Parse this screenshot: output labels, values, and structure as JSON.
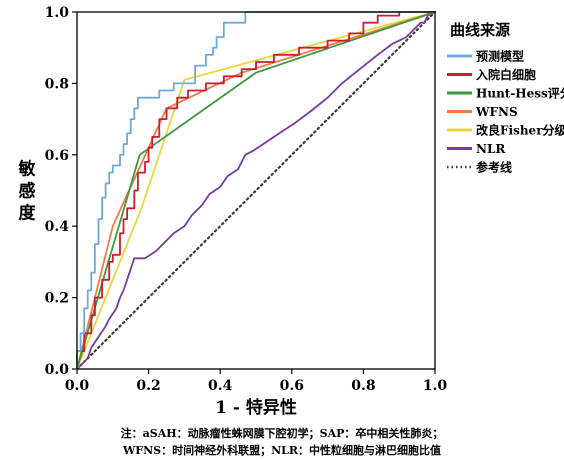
{
  "chart_data": {
    "type": "line",
    "title": "",
    "xlabel": "1 - 特异性",
    "ylabel": "敏感度",
    "xlim": [
      0,
      1
    ],
    "ylim": [
      0,
      1
    ],
    "x_ticks": [
      "0.0",
      "0.2",
      "0.4",
      "0.6",
      "0.8",
      "1.0"
    ],
    "y_ticks": [
      "0.0",
      "0.2",
      "0.4",
      "0.6",
      "0.8",
      "1.0"
    ],
    "grid": false,
    "legend": {
      "title": "曲线来源",
      "placement": "right"
    },
    "series": [
      {
        "name": "预测模型",
        "color": "#6fa8dc",
        "style": "step",
        "points": [
          [
            0,
            0
          ],
          [
            0,
            0.05
          ],
          [
            0.01,
            0.05
          ],
          [
            0.01,
            0.1
          ],
          [
            0.02,
            0.1
          ],
          [
            0.02,
            0.17
          ],
          [
            0.03,
            0.17
          ],
          [
            0.03,
            0.22
          ],
          [
            0.04,
            0.22
          ],
          [
            0.04,
            0.27
          ],
          [
            0.05,
            0.27
          ],
          [
            0.05,
            0.35
          ],
          [
            0.06,
            0.35
          ],
          [
            0.06,
            0.42
          ],
          [
            0.07,
            0.42
          ],
          [
            0.07,
            0.48
          ],
          [
            0.08,
            0.48
          ],
          [
            0.08,
            0.52
          ],
          [
            0.09,
            0.52
          ],
          [
            0.09,
            0.55
          ],
          [
            0.1,
            0.55
          ],
          [
            0.1,
            0.57
          ],
          [
            0.12,
            0.57
          ],
          [
            0.12,
            0.6
          ],
          [
            0.13,
            0.6
          ],
          [
            0.13,
            0.63
          ],
          [
            0.14,
            0.63
          ],
          [
            0.14,
            0.66
          ],
          [
            0.15,
            0.66
          ],
          [
            0.15,
            0.7
          ],
          [
            0.16,
            0.7
          ],
          [
            0.16,
            0.73
          ],
          [
            0.17,
            0.73
          ],
          [
            0.17,
            0.76
          ],
          [
            0.23,
            0.76
          ],
          [
            0.23,
            0.78
          ],
          [
            0.27,
            0.78
          ],
          [
            0.27,
            0.8
          ],
          [
            0.33,
            0.8
          ],
          [
            0.33,
            0.85
          ],
          [
            0.36,
            0.85
          ],
          [
            0.36,
            0.88
          ],
          [
            0.38,
            0.88
          ],
          [
            0.38,
            0.9
          ],
          [
            0.39,
            0.9
          ],
          [
            0.39,
            0.93
          ],
          [
            0.41,
            0.93
          ],
          [
            0.41,
            0.97
          ],
          [
            0.47,
            0.97
          ],
          [
            0.47,
            1.0
          ],
          [
            1.0,
            1.0
          ]
        ]
      },
      {
        "name": "入院白细胞",
        "color": "#d01c2c",
        "style": "step",
        "points": [
          [
            0,
            0
          ],
          [
            0,
            0.05
          ],
          [
            0.02,
            0.05
          ],
          [
            0.02,
            0.1
          ],
          [
            0.04,
            0.1
          ],
          [
            0.04,
            0.15
          ],
          [
            0.05,
            0.15
          ],
          [
            0.05,
            0.2
          ],
          [
            0.07,
            0.2
          ],
          [
            0.07,
            0.25
          ],
          [
            0.09,
            0.25
          ],
          [
            0.09,
            0.3
          ],
          [
            0.1,
            0.3
          ],
          [
            0.1,
            0.32
          ],
          [
            0.12,
            0.32
          ],
          [
            0.12,
            0.38
          ],
          [
            0.13,
            0.38
          ],
          [
            0.13,
            0.42
          ],
          [
            0.14,
            0.42
          ],
          [
            0.14,
            0.45
          ],
          [
            0.16,
            0.45
          ],
          [
            0.16,
            0.5
          ],
          [
            0.17,
            0.5
          ],
          [
            0.17,
            0.55
          ],
          [
            0.19,
            0.55
          ],
          [
            0.19,
            0.58
          ],
          [
            0.2,
            0.58
          ],
          [
            0.2,
            0.62
          ],
          [
            0.21,
            0.62
          ],
          [
            0.21,
            0.65
          ],
          [
            0.23,
            0.65
          ],
          [
            0.23,
            0.7
          ],
          [
            0.25,
            0.7
          ],
          [
            0.25,
            0.73
          ],
          [
            0.28,
            0.73
          ],
          [
            0.28,
            0.76
          ],
          [
            0.31,
            0.76
          ],
          [
            0.31,
            0.78
          ],
          [
            0.36,
            0.78
          ],
          [
            0.36,
            0.8
          ],
          [
            0.41,
            0.8
          ],
          [
            0.41,
            0.82
          ],
          [
            0.46,
            0.82
          ],
          [
            0.46,
            0.84
          ],
          [
            0.5,
            0.84
          ],
          [
            0.5,
            0.86
          ],
          [
            0.55,
            0.86
          ],
          [
            0.55,
            0.88
          ],
          [
            0.62,
            0.88
          ],
          [
            0.62,
            0.9
          ],
          [
            0.7,
            0.9
          ],
          [
            0.7,
            0.92
          ],
          [
            0.76,
            0.92
          ],
          [
            0.76,
            0.94
          ],
          [
            0.8,
            0.94
          ],
          [
            0.8,
            0.97
          ],
          [
            0.84,
            0.97
          ],
          [
            0.84,
            0.99
          ],
          [
            0.9,
            0.99
          ],
          [
            0.9,
            1.0
          ],
          [
            1.0,
            1.0
          ]
        ]
      },
      {
        "name": "Hunt-Hess评分",
        "color": "#3b9a3b",
        "style": "line",
        "points": [
          [
            0,
            0
          ],
          [
            0.175,
            0.6
          ],
          [
            0.5,
            0.83
          ],
          [
            1.0,
            1.0
          ]
        ]
      },
      {
        "name": "WFNS",
        "color": "#f07a4a",
        "style": "line",
        "points": [
          [
            0,
            0
          ],
          [
            0.1,
            0.4
          ],
          [
            0.25,
            0.73
          ],
          [
            0.46,
            0.83
          ],
          [
            1.0,
            1.0
          ]
        ]
      },
      {
        "name": "改良Fisher分级",
        "color": "#e8d840",
        "style": "line",
        "points": [
          [
            0,
            0
          ],
          [
            0.18,
            0.45
          ],
          [
            0.3,
            0.81
          ],
          [
            1.0,
            1.0
          ]
        ]
      },
      {
        "name": "NLR",
        "color": "#7a3a9a",
        "style": "step",
        "points": [
          [
            0,
            0
          ],
          [
            0.03,
            0.03
          ],
          [
            0.04,
            0.06
          ],
          [
            0.06,
            0.09
          ],
          [
            0.08,
            0.12
          ],
          [
            0.09,
            0.14
          ],
          [
            0.11,
            0.17
          ],
          [
            0.12,
            0.2
          ],
          [
            0.13,
            0.22
          ],
          [
            0.14,
            0.25
          ],
          [
            0.15,
            0.28
          ],
          [
            0.16,
            0.31
          ],
          [
            0.19,
            0.31
          ],
          [
            0.22,
            0.33
          ],
          [
            0.25,
            0.36
          ],
          [
            0.27,
            0.38
          ],
          [
            0.3,
            0.4
          ],
          [
            0.32,
            0.43
          ],
          [
            0.35,
            0.46
          ],
          [
            0.37,
            0.49
          ],
          [
            0.4,
            0.51
          ],
          [
            0.42,
            0.54
          ],
          [
            0.45,
            0.56
          ],
          [
            0.47,
            0.6
          ],
          [
            0.49,
            0.61
          ],
          [
            0.52,
            0.63
          ],
          [
            0.55,
            0.65
          ],
          [
            0.58,
            0.67
          ],
          [
            0.61,
            0.69
          ],
          [
            0.65,
            0.72
          ],
          [
            0.7,
            0.76
          ],
          [
            0.74,
            0.8
          ],
          [
            0.79,
            0.84
          ],
          [
            0.84,
            0.88
          ],
          [
            0.88,
            0.91
          ],
          [
            0.92,
            0.93
          ],
          [
            0.94,
            0.95
          ],
          [
            0.96,
            0.97
          ],
          [
            0.97,
            0.97
          ],
          [
            0.98,
            0.99
          ],
          [
            1.0,
            1.0
          ]
        ]
      },
      {
        "name": "参考线",
        "color": "#3a3a3a",
        "style": "dotted",
        "points": [
          [
            0,
            0
          ],
          [
            1,
            1
          ]
        ]
      }
    ]
  },
  "notes": {
    "line1": "注：aSAH：动脉瘤性蛛网膜下腔初学；SAP：卒中相关性肺炎；",
    "line2": "WFNS：时间神经外科联盟；NLR：中性粒细胞与淋巴细胞比值"
  }
}
